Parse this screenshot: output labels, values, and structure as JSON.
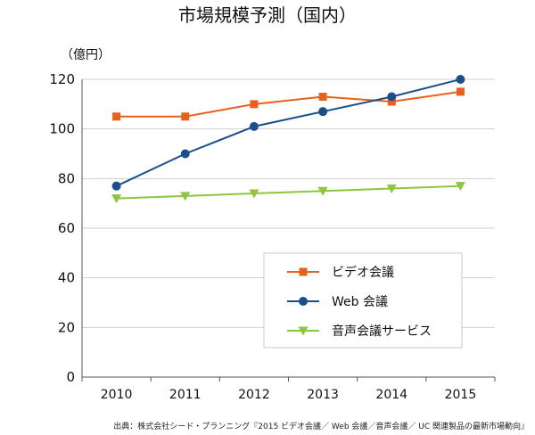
{
  "chart_data": {
    "type": "line",
    "title": "市場規模予測（国内）",
    "ylabel": "（億円）",
    "xlabel": "",
    "categories": [
      "2010",
      "2011",
      "2012",
      "2013",
      "2014",
      "2015"
    ],
    "ylim": [
      0,
      120
    ],
    "yticks": [
      0,
      20,
      40,
      60,
      80,
      100,
      120
    ],
    "grid": true,
    "legend_position": "bottom-right",
    "series": [
      {
        "name": "ビデオ会議",
        "color": "#e8601c",
        "marker": "square",
        "values": [
          105,
          105,
          110,
          113,
          111,
          115
        ]
      },
      {
        "name": "Web 会議",
        "color": "#1a4f8b",
        "marker": "circle",
        "values": [
          77,
          90,
          101,
          107,
          113,
          120
        ]
      },
      {
        "name": "音声会議サービス",
        "color": "#8cc63f",
        "marker": "triangle-down",
        "values": [
          72,
          73,
          74,
          75,
          76,
          77
        ]
      }
    ],
    "source": "出典：株式会社シード・プランニング『2015 ビデオ会議／ Web 会議／音声会議／ UC 関連製品の最新市場動向』"
  }
}
